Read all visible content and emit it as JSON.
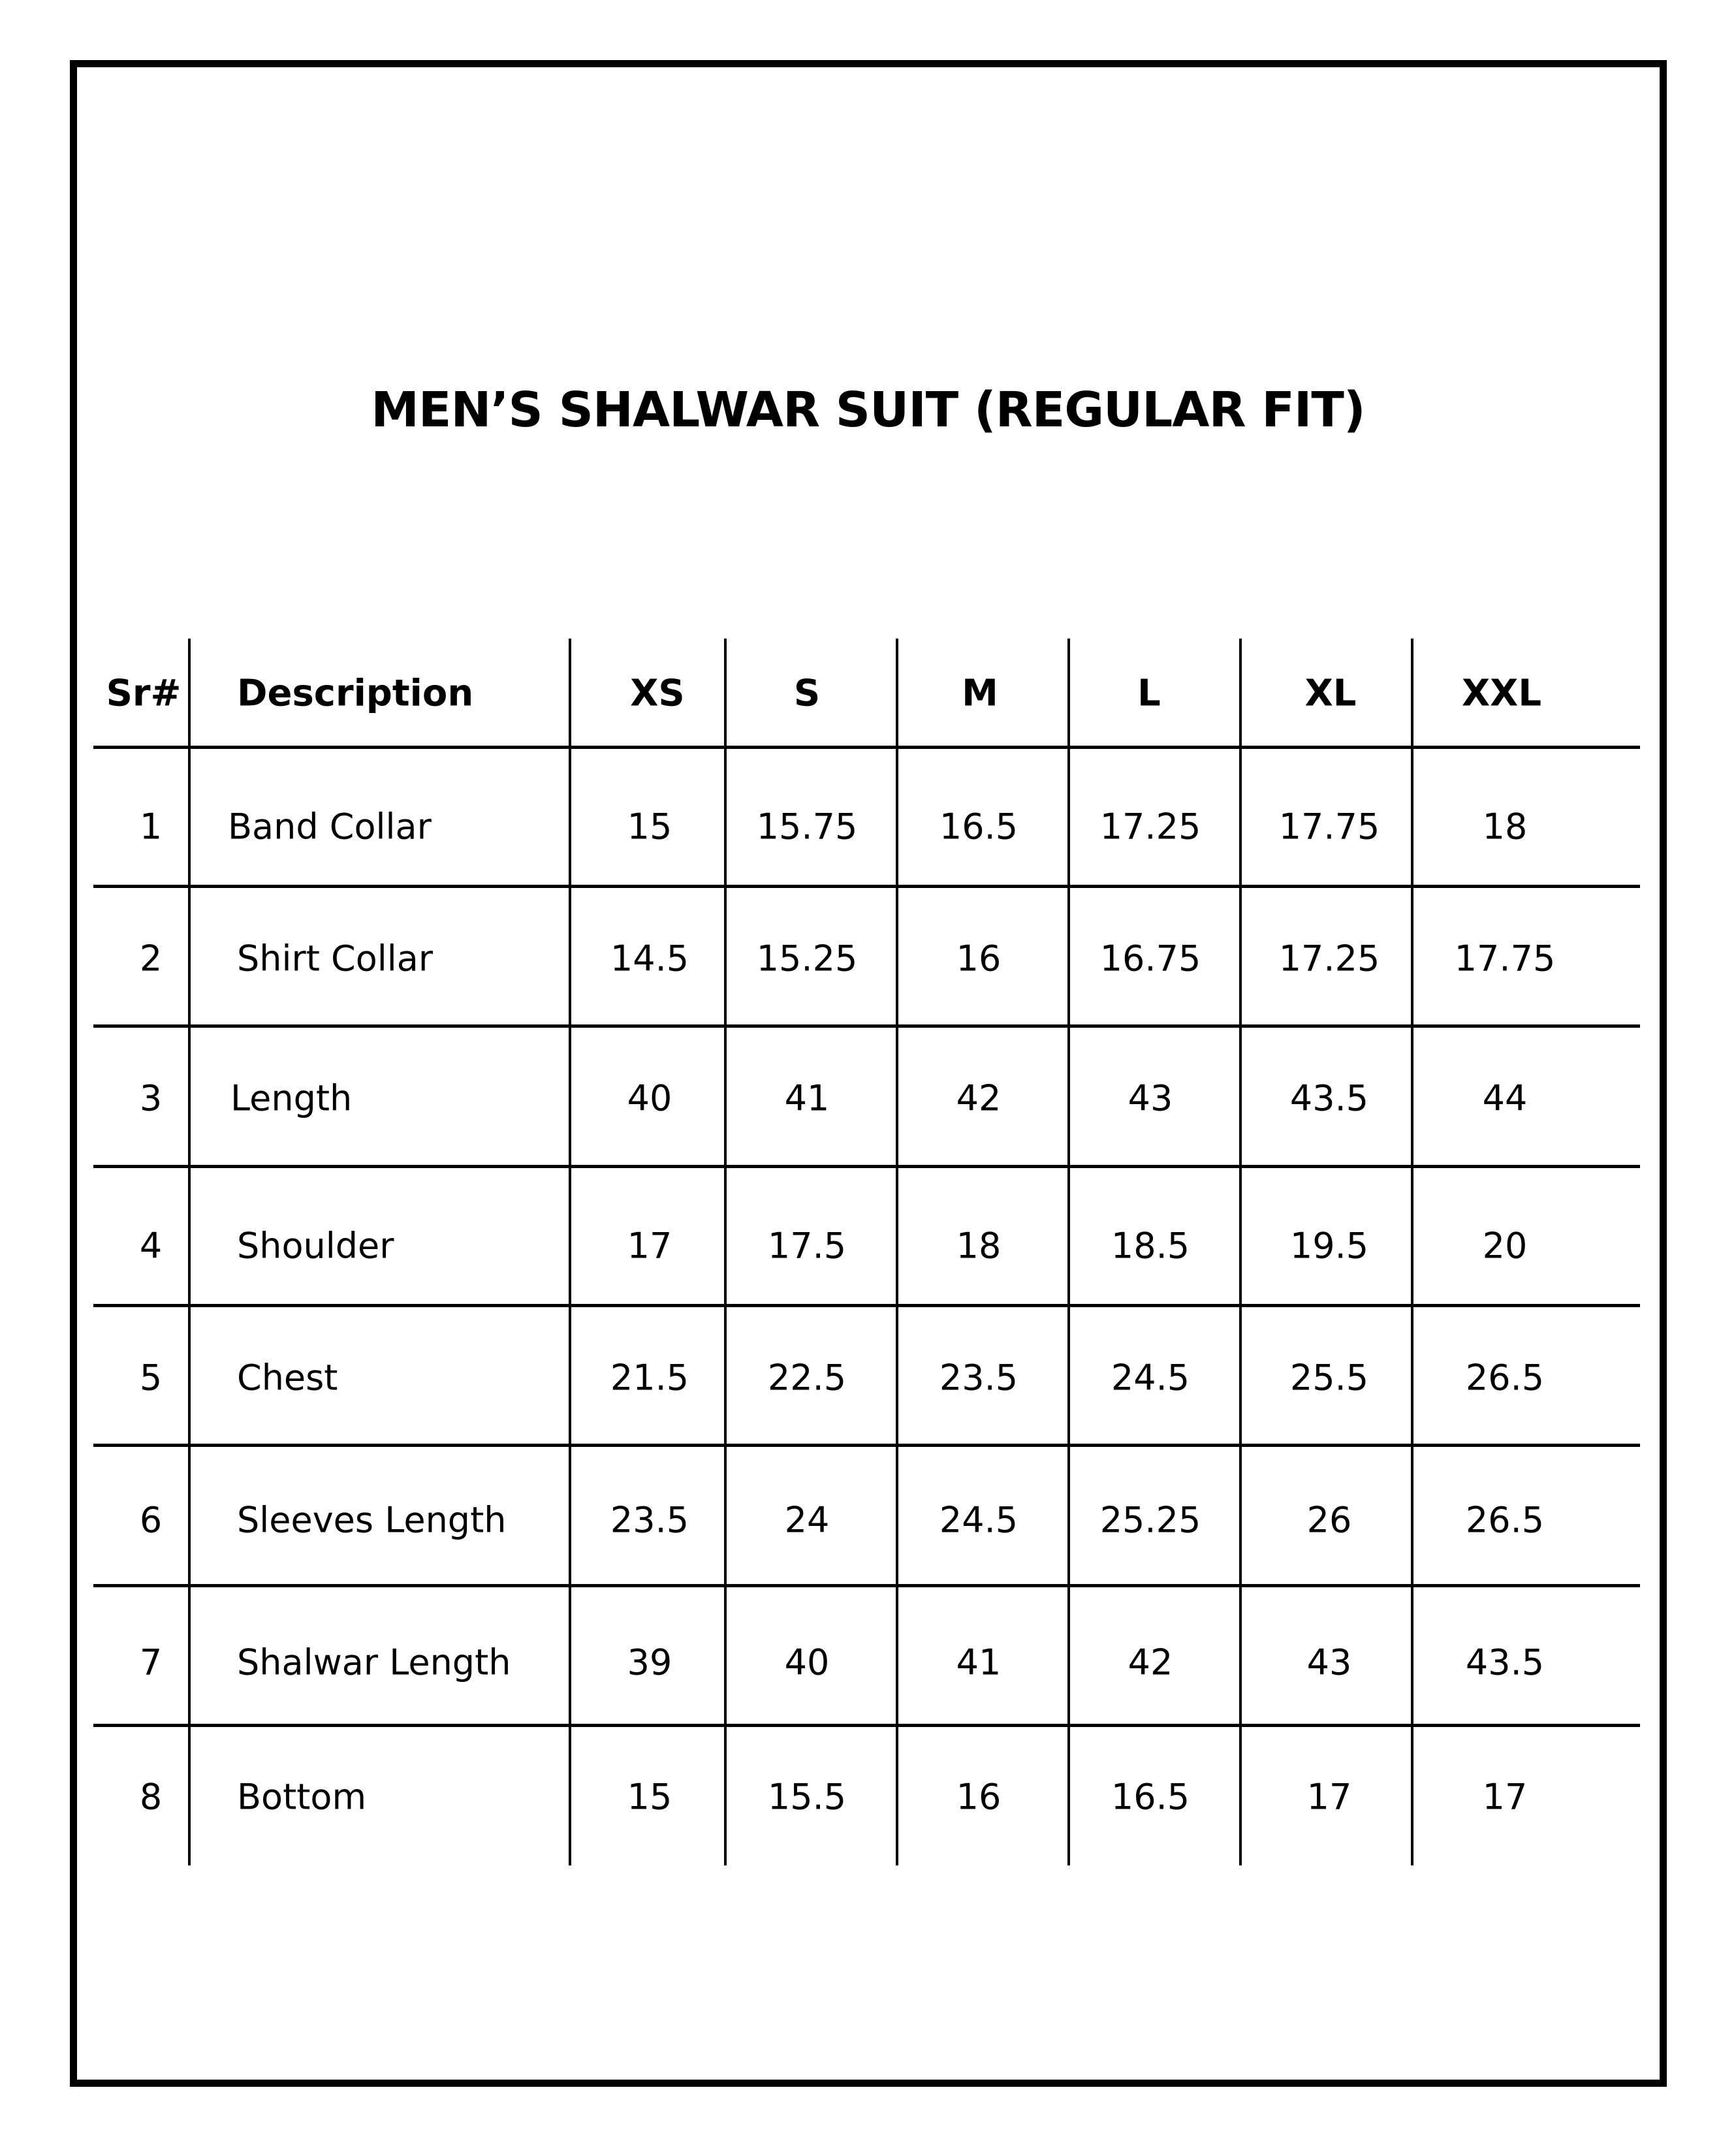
{
  "title": "MEN’S SHALWAR SUIT (REGULAR FIT)",
  "table": {
    "headers": [
      "Sr#",
      "Description",
      "XS",
      "S",
      "M",
      "L",
      "XL",
      "XXL"
    ],
    "rows": [
      [
        "1",
        "Band Collar",
        "15",
        "15.75",
        "16.5",
        "17.25",
        "17.75",
        "18"
      ],
      [
        "2",
        "Shirt Collar",
        "14.5",
        "15.25",
        "16",
        "16.75",
        "17.25",
        "17.75"
      ],
      [
        "3",
        "Length",
        "40",
        "41",
        "42",
        "43",
        "43.5",
        "44"
      ],
      [
        "4",
        "Shoulder",
        "17",
        "17.5",
        "18",
        "18.5",
        "19.5",
        "20"
      ],
      [
        "5",
        "Chest",
        "21.5",
        "22.5",
        "23.5",
        "24.5",
        "25.5",
        "26.5"
      ],
      [
        "6",
        "Sleeves Length",
        "23.5",
        "24",
        "24.5",
        "25.25",
        "26",
        "26.5"
      ],
      [
        "7",
        "Shalwar Length",
        "39",
        "40",
        "41",
        "42",
        "43",
        "43.5"
      ],
      [
        "8",
        "Bottom",
        "15",
        "15.5",
        "16",
        "16.5",
        "17",
        "17"
      ]
    ]
  }
}
